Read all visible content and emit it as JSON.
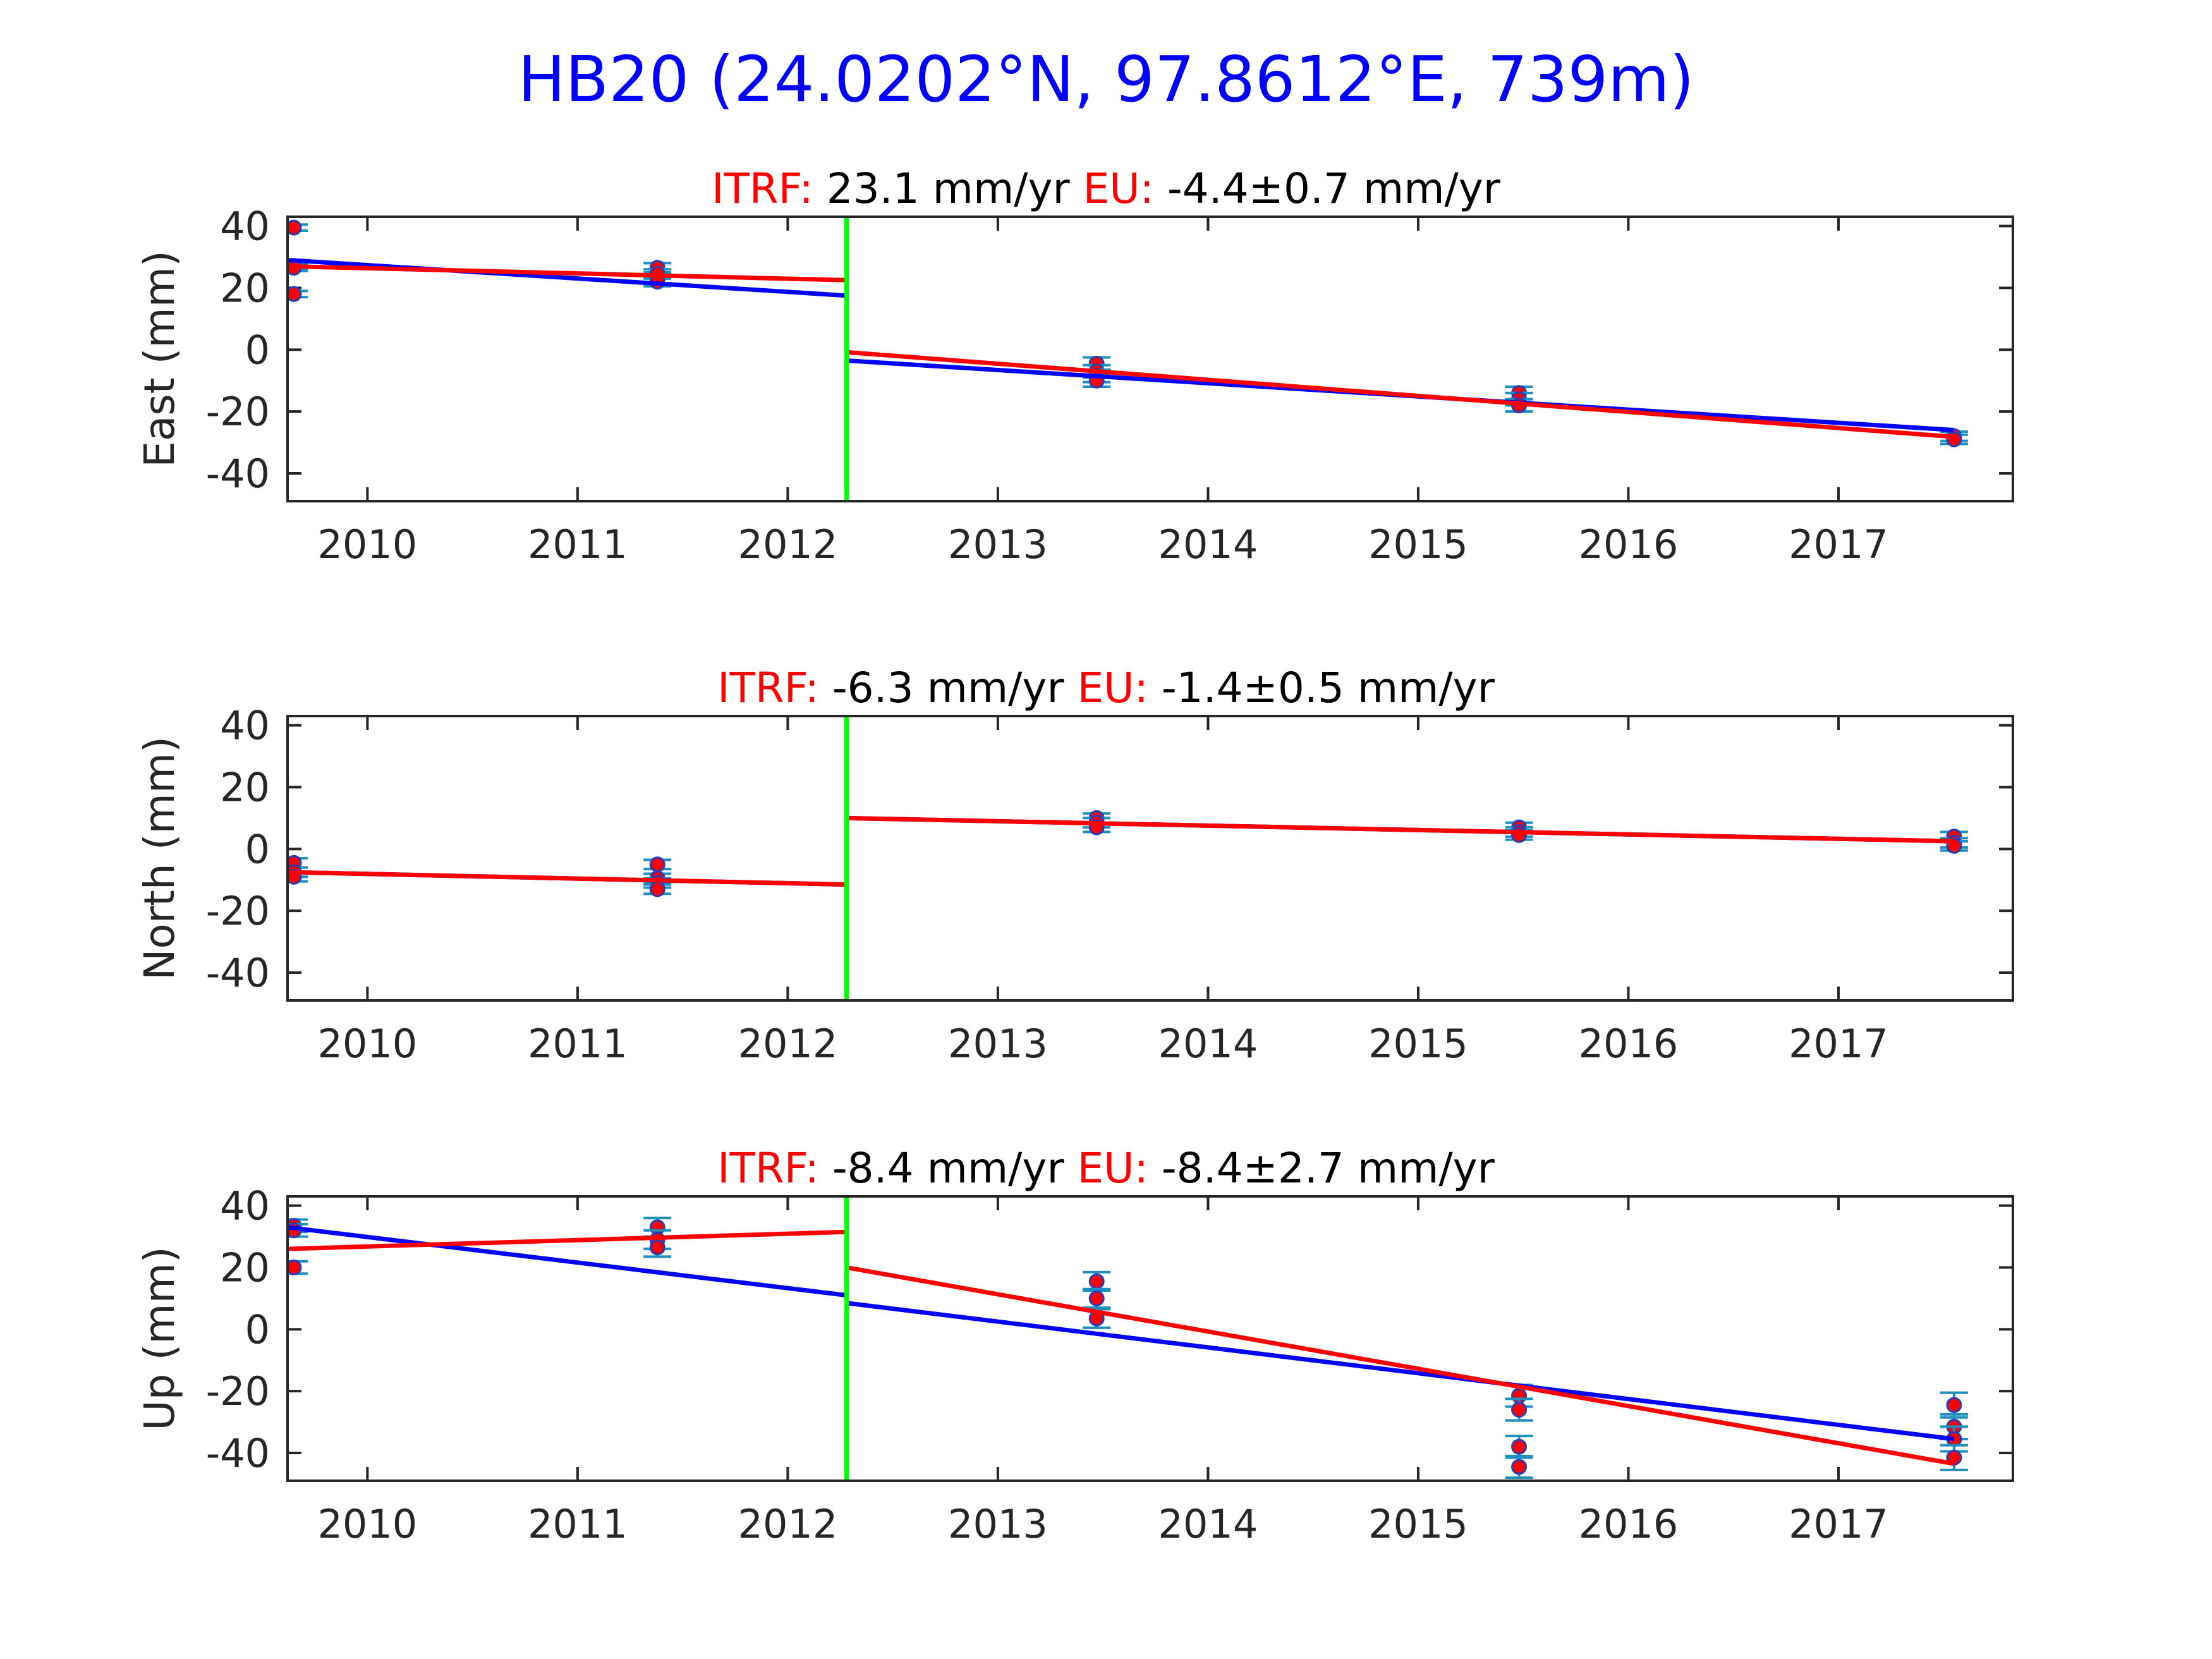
{
  "figure": {
    "title": "HB20 (24.0202°N, 97.8612°E, 739m)",
    "title_color": "#0000ff"
  },
  "colors": {
    "data_marker": "#ff0000",
    "marker_edge": "#1f3fbf",
    "errorbar": "#1f8fbf",
    "fit_line_blue": "#0000ff",
    "fit_line_red": "#ff0000",
    "break_line": "#00ff00",
    "label_red": "#ff0000",
    "text_black": "#000000",
    "axis": "#262626"
  },
  "chart_data": [
    {
      "type": "scatter",
      "panel": "east",
      "ylabel": "East (mm)",
      "title_parts": {
        "itrf_label": "ITRF:",
        "itrf_value": "23.1 mm/yr",
        "eu_label": "EU:",
        "eu_value": "-4.4±0.7 mm/yr"
      },
      "xlim": [
        2009.62,
        2017.83
      ],
      "ylim": [
        -49,
        43
      ],
      "xticks": [
        2010,
        2011,
        2012,
        2013,
        2014,
        2015,
        2016,
        2017
      ],
      "yticks": [
        -40,
        -20,
        0,
        20,
        40
      ],
      "break_epoch": 2012.28,
      "points": [
        {
          "x": 2009.65,
          "y": 39.5,
          "err": 1.0
        },
        {
          "x": 2009.65,
          "y": 27,
          "err": 1.0
        },
        {
          "x": 2009.65,
          "y": 26.5,
          "err": 1.0
        },
        {
          "x": 2009.65,
          "y": 18,
          "err": 1.0
        },
        {
          "x": 2011.38,
          "y": 26.5,
          "err": 1.5
        },
        {
          "x": 2011.38,
          "y": 24.5,
          "err": 1.5
        },
        {
          "x": 2011.38,
          "y": 22,
          "err": 1.5
        },
        {
          "x": 2013.47,
          "y": -4.5,
          "err": 2.0
        },
        {
          "x": 2013.47,
          "y": -7,
          "err": 2.0
        },
        {
          "x": 2013.47,
          "y": -8.5,
          "err": 2.0
        },
        {
          "x": 2013.47,
          "y": -10,
          "err": 2.0
        },
        {
          "x": 2015.48,
          "y": -14,
          "err": 2.0
        },
        {
          "x": 2015.48,
          "y": -16,
          "err": 2.0
        },
        {
          "x": 2015.48,
          "y": -18,
          "err": 2.0
        },
        {
          "x": 2017.55,
          "y": -28,
          "err": 1.5
        },
        {
          "x": 2017.55,
          "y": -29,
          "err": 1.5
        }
      ],
      "lines": [
        {
          "color": "blue",
          "x": [
            2009.62,
            2012.28
          ],
          "y": [
            29,
            17.5
          ]
        },
        {
          "color": "blue",
          "x": [
            2012.28,
            2017.55
          ],
          "y": [
            -3.5,
            -26
          ]
        },
        {
          "color": "red",
          "x": [
            2009.62,
            2012.28
          ],
          "y": [
            27,
            22.5
          ]
        },
        {
          "color": "red",
          "x": [
            2012.28,
            2017.55
          ],
          "y": [
            -0.8,
            -28.2
          ]
        }
      ]
    },
    {
      "type": "scatter",
      "panel": "north",
      "ylabel": "North (mm)",
      "title_parts": {
        "itrf_label": "ITRF:",
        "itrf_value": "-6.3 mm/yr",
        "eu_label": "EU:",
        "eu_value": "-1.4±0.5 mm/yr"
      },
      "xlim": [
        2009.62,
        2017.83
      ],
      "ylim": [
        -49,
        43
      ],
      "xticks": [
        2010,
        2011,
        2012,
        2013,
        2014,
        2015,
        2016,
        2017
      ],
      "yticks": [
        -40,
        -20,
        0,
        20,
        40
      ],
      "break_epoch": 2012.28,
      "points": [
        {
          "x": 2009.65,
          "y": -4.5,
          "err": 1.5
        },
        {
          "x": 2009.65,
          "y": -7.5,
          "err": 1.5
        },
        {
          "x": 2009.65,
          "y": -9,
          "err": 1.5
        },
        {
          "x": 2011.38,
          "y": -5,
          "err": 1.5
        },
        {
          "x": 2011.38,
          "y": -9.5,
          "err": 1.5
        },
        {
          "x": 2011.38,
          "y": -11,
          "err": 1.5
        },
        {
          "x": 2011.38,
          "y": -13,
          "err": 1.5
        },
        {
          "x": 2013.47,
          "y": 10,
          "err": 1.5
        },
        {
          "x": 2013.47,
          "y": 8.5,
          "err": 1.5
        },
        {
          "x": 2013.47,
          "y": 7,
          "err": 1.5
        },
        {
          "x": 2015.48,
          "y": 7,
          "err": 1.5
        },
        {
          "x": 2015.48,
          "y": 5.5,
          "err": 1.5
        },
        {
          "x": 2015.48,
          "y": 4.5,
          "err": 1.5
        },
        {
          "x": 2017.55,
          "y": 4,
          "err": 1.5
        },
        {
          "x": 2017.55,
          "y": 2,
          "err": 1.5
        },
        {
          "x": 2017.55,
          "y": 1,
          "err": 1.5
        }
      ],
      "lines": [
        {
          "color": "blue",
          "x": [
            2009.62,
            2012.28
          ],
          "y": [
            -7.5,
            -11.5
          ]
        },
        {
          "color": "blue",
          "x": [
            2012.28,
            2017.55
          ],
          "y": [
            10,
            2.5
          ]
        },
        {
          "color": "red",
          "x": [
            2009.62,
            2012.28
          ],
          "y": [
            -7.5,
            -11.5
          ]
        },
        {
          "color": "red",
          "x": [
            2012.28,
            2017.55
          ],
          "y": [
            10,
            2.5
          ]
        }
      ]
    },
    {
      "type": "scatter",
      "panel": "up",
      "ylabel": "Up (mm)",
      "title_parts": {
        "itrf_label": "ITRF:",
        "itrf_value": "-8.4 mm/yr",
        "eu_label": "EU:",
        "eu_value": "-8.4±2.7 mm/yr"
      },
      "xlim": [
        2009.62,
        2017.83
      ],
      "ylim": [
        -49,
        43
      ],
      "xticks": [
        2010,
        2011,
        2012,
        2013,
        2014,
        2015,
        2016,
        2017
      ],
      "yticks": [
        -40,
        -20,
        0,
        20,
        40
      ],
      "break_epoch": 2012.28,
      "points": [
        {
          "x": 2009.65,
          "y": 33.5,
          "err": 2.0
        },
        {
          "x": 2009.65,
          "y": 32,
          "err": 2.0
        },
        {
          "x": 2009.65,
          "y": 20,
          "err": 2.0
        },
        {
          "x": 2011.38,
          "y": 33,
          "err": 3.0
        },
        {
          "x": 2011.38,
          "y": 29,
          "err": 3.0
        },
        {
          "x": 2011.38,
          "y": 26.5,
          "err": 3.0
        },
        {
          "x": 2013.47,
          "y": 15.5,
          "err": 3.0
        },
        {
          "x": 2013.47,
          "y": 10,
          "err": 3.0
        },
        {
          "x": 2013.47,
          "y": 3.5,
          "err": 3.0
        },
        {
          "x": 2015.48,
          "y": -21.5,
          "err": 3.5
        },
        {
          "x": 2015.48,
          "y": -26,
          "err": 3.5
        },
        {
          "x": 2015.48,
          "y": -38,
          "err": 3.5
        },
        {
          "x": 2015.48,
          "y": -44.5,
          "err": 3.5
        },
        {
          "x": 2017.55,
          "y": -24.5,
          "err": 4.0
        },
        {
          "x": 2017.55,
          "y": -31.5,
          "err": 4.0
        },
        {
          "x": 2017.55,
          "y": -35.5,
          "err": 4.0
        },
        {
          "x": 2017.55,
          "y": -41.5,
          "err": 4.0
        }
      ],
      "lines": [
        {
          "color": "blue",
          "x": [
            2009.62,
            2012.28
          ],
          "y": [
            33,
            11
          ]
        },
        {
          "color": "blue",
          "x": [
            2012.28,
            2017.55
          ],
          "y": [
            8.5,
            -35.5
          ]
        },
        {
          "color": "red",
          "x": [
            2009.62,
            2012.28
          ],
          "y": [
            26,
            31.5
          ]
        },
        {
          "color": "red",
          "x": [
            2012.28,
            2017.55
          ],
          "y": [
            20,
            -43.5
          ]
        }
      ]
    }
  ]
}
